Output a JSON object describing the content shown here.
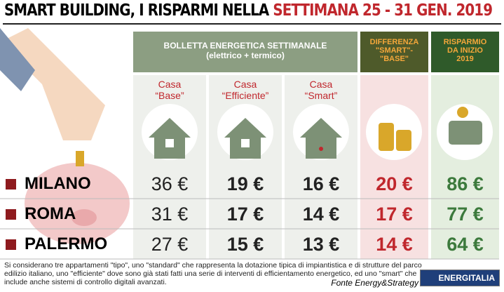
{
  "title": {
    "prefix": "SMART BUILDING, I RISPARMI NELLA",
    "highlight": "SETTIMANA 25 - 31 GEN. 2019"
  },
  "header": {
    "group": "BOLLETTA ENERGETICA SETTIMANALE",
    "group_sub": "(elettrico + termico)",
    "difference": "DIFFERENZA \"SMART\"-\"BASE\"",
    "savings": "RISPARMIO DA INIZIO 2019"
  },
  "columns": [
    {
      "line1": "Casa",
      "line2": "“Base”"
    },
    {
      "line1": "Casa",
      "line2": "“Efficiente”"
    },
    {
      "line1": "Casa",
      "line2": "“Smart”"
    }
  ],
  "rows": [
    {
      "city": "MILANO",
      "values": [
        "36 €",
        "19 €",
        "16 €",
        "20 €",
        "86 €"
      ]
    },
    {
      "city": "ROMA",
      "values": [
        "31 €",
        "17 €",
        "14 €",
        "17 €",
        "77 €"
      ]
    },
    {
      "city": "PALERMO",
      "values": [
        "27 €",
        "15 €",
        "13 €",
        "14 €",
        "64 €"
      ]
    }
  ],
  "note": "Si considerano tre appartamenti \"tipo\", uno \"standard\" che rappresenta la dotazione tipica di impiantistica e di strutture del parco edilizio italiano, uno \"efficiente\" dove sono già stati fatti una serie di interventi di efficientamento energetico, ed uno \"smart\" che include anche sistemi di controllo digitali avanzati.",
  "source": "Fonte Energy&Strategy",
  "logo": "ENERGITALIA"
}
